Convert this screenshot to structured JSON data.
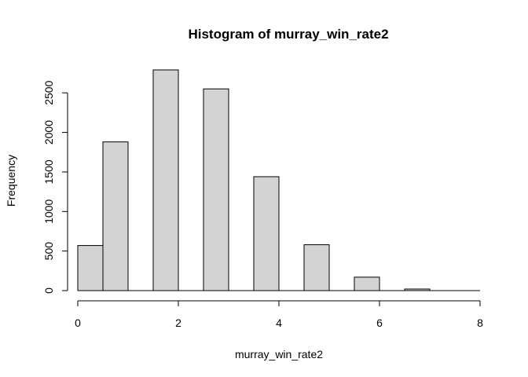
{
  "chart_data": {
    "type": "bar",
    "title": "Histogram of murray_win_rate2",
    "xlabel": "murray_win_rate2",
    "ylabel": "Frequency",
    "bins": [
      {
        "x0": 0.0,
        "x1": 0.5,
        "count": 570
      },
      {
        "x0": 0.5,
        "x1": 1.0,
        "count": 1880
      },
      {
        "x0": 1.0,
        "x1": 1.5,
        "count": 0
      },
      {
        "x0": 1.5,
        "x1": 2.0,
        "count": 2790
      },
      {
        "x0": 2.0,
        "x1": 2.5,
        "count": 0
      },
      {
        "x0": 2.5,
        "x1": 3.0,
        "count": 2550
      },
      {
        "x0": 3.0,
        "x1": 3.5,
        "count": 0
      },
      {
        "x0": 3.5,
        "x1": 4.0,
        "count": 1440
      },
      {
        "x0": 4.0,
        "x1": 4.5,
        "count": 0
      },
      {
        "x0": 4.5,
        "x1": 5.0,
        "count": 580
      },
      {
        "x0": 5.0,
        "x1": 5.5,
        "count": 0
      },
      {
        "x0": 5.5,
        "x1": 6.0,
        "count": 170
      },
      {
        "x0": 6.0,
        "x1": 6.5,
        "count": 0
      },
      {
        "x0": 6.5,
        "x1": 7.0,
        "count": 20
      },
      {
        "x0": 7.0,
        "x1": 7.5,
        "count": 0
      },
      {
        "x0": 7.5,
        "x1": 8.0,
        "count": 0
      }
    ],
    "xticks": [
      0,
      2,
      4,
      6,
      8
    ],
    "yticks": [
      0,
      500,
      1000,
      1500,
      2000,
      2500
    ],
    "xlim": [
      0,
      8
    ],
    "ylim": [
      0,
      2790
    ],
    "bar_fill": "#d3d3d3",
    "bar_stroke": "#000000",
    "grid": false
  }
}
